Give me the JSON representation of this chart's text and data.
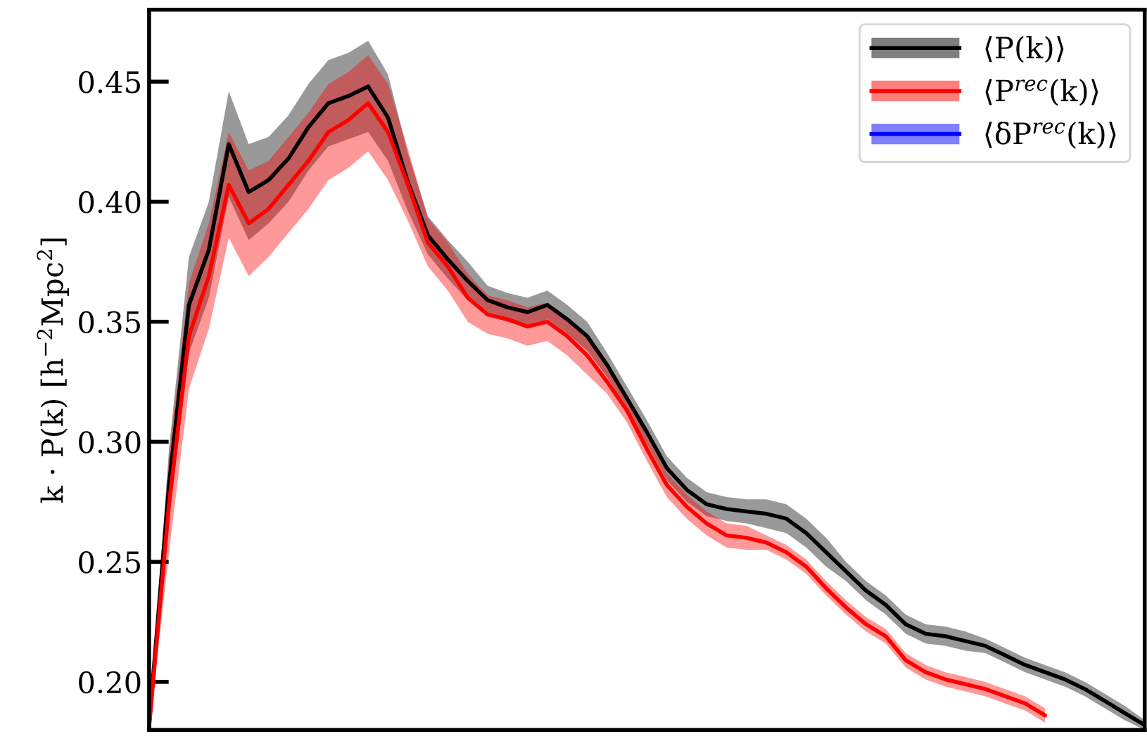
{
  "chart_data": {
    "type": "line",
    "ylabel": "k · P(k) [h$^{−2}$Mpc$^{2}$]",
    "categories": [
      null,
      null,
      null,
      null,
      null,
      null,
      null,
      null,
      null,
      null,
      null,
      null,
      null,
      null,
      null,
      null,
      null,
      null,
      null,
      null,
      null,
      null,
      null,
      null,
      null,
      null,
      null,
      null,
      null,
      null,
      null,
      null,
      null,
      null,
      null,
      null,
      null,
      null,
      null,
      null,
      null,
      null,
      null,
      null,
      null,
      null,
      null,
      null,
      null,
      null,
      null
    ],
    "ylim": [
      0.18,
      0.48
    ],
    "yticks": [
      {
        "value": 0.2,
        "label": "0.20"
      },
      0.25,
      {
        "value": 0.3,
        "label": "0.30"
      },
      0.35,
      {
        "value": 0.4,
        "label": "0.40"
      },
      0.45
    ],
    "grid": false,
    "legend": "top right",
    "marker": "none",
    "line_style": "solid",
    "series": [
      {
        "name": "⟨P(k)⟩",
        "color": "#000000",
        "values": [
          0.182,
          0.282,
          0.357,
          0.38,
          0.424,
          0.404,
          0.409,
          0.418,
          0.431,
          0.441,
          0.444,
          0.448,
          0.435,
          0.408,
          0.386,
          0.376,
          0.367,
          0.359,
          0.356,
          0.354,
          0.357,
          0.351,
          0.344,
          0.332,
          0.318,
          0.304,
          0.289,
          0.28,
          0.274,
          0.272,
          0.271,
          0.27,
          0.268,
          0.262,
          0.254,
          0.246,
          0.238,
          0.232,
          0.224,
          0.22,
          0.219,
          0.217,
          0.215,
          0.211,
          0.207,
          0.204,
          0.201,
          0.197,
          0.192,
          0.187,
          0.182
        ],
        "lower": [
          0.18,
          0.267,
          0.337,
          0.36,
          0.402,
          0.384,
          0.391,
          0.4,
          0.413,
          0.423,
          0.426,
          0.429,
          0.417,
          0.396,
          0.378,
          0.368,
          0.359,
          0.353,
          0.35,
          0.348,
          0.351,
          0.345,
          0.338,
          0.327,
          0.313,
          0.299,
          0.284,
          0.275,
          0.269,
          0.267,
          0.266,
          0.264,
          0.262,
          0.256,
          0.248,
          0.242,
          0.234,
          0.228,
          0.22,
          0.216,
          0.215,
          0.213,
          0.212,
          0.208,
          0.204,
          0.201,
          0.198,
          0.194,
          0.189,
          0.184,
          0.18
        ],
        "upper": [
          0.184,
          0.297,
          0.377,
          0.4,
          0.446,
          0.424,
          0.427,
          0.436,
          0.449,
          0.459,
          0.462,
          0.467,
          0.453,
          0.42,
          0.394,
          0.384,
          0.375,
          0.365,
          0.362,
          0.36,
          0.363,
          0.357,
          0.35,
          0.337,
          0.323,
          0.309,
          0.294,
          0.285,
          0.279,
          0.277,
          0.276,
          0.276,
          0.274,
          0.268,
          0.26,
          0.25,
          0.242,
          0.236,
          0.228,
          0.224,
          0.223,
          0.221,
          0.218,
          0.214,
          0.21,
          0.207,
          0.204,
          0.2,
          0.195,
          0.19,
          0.184
        ]
      },
      {
        "name": "⟨P$^{rec}$(k)⟩",
        "color": "#ff0000",
        "values": [
          0.181,
          0.274,
          0.344,
          0.369,
          0.407,
          0.391,
          0.397,
          0.407,
          0.417,
          0.429,
          0.434,
          0.441,
          0.429,
          0.407,
          0.383,
          0.373,
          0.36,
          0.353,
          0.351,
          0.348,
          0.35,
          0.344,
          0.336,
          0.325,
          0.313,
          0.297,
          0.282,
          0.273,
          0.266,
          0.261,
          0.26,
          0.258,
          0.254,
          0.248,
          0.239,
          0.231,
          0.224,
          0.219,
          0.209,
          0.204,
          0.201,
          0.199,
          0.197,
          0.194,
          0.191,
          0.186,
          null,
          null,
          null,
          null,
          null
        ],
        "lower": [
          0.18,
          0.254,
          0.322,
          0.347,
          0.385,
          0.369,
          0.377,
          0.387,
          0.397,
          0.409,
          0.414,
          0.421,
          0.409,
          0.392,
          0.373,
          0.363,
          0.35,
          0.345,
          0.343,
          0.34,
          0.342,
          0.336,
          0.328,
          0.32,
          0.308,
          0.292,
          0.277,
          0.268,
          0.261,
          0.256,
          0.255,
          0.255,
          0.251,
          0.245,
          0.236,
          0.228,
          0.221,
          0.216,
          0.206,
          0.201,
          0.198,
          0.196,
          0.194,
          0.191,
          0.188,
          0.183,
          null,
          null,
          null,
          null,
          null
        ],
        "upper": [
          0.182,
          0.294,
          0.366,
          0.391,
          0.429,
          0.413,
          0.417,
          0.427,
          0.437,
          0.449,
          0.454,
          0.461,
          0.449,
          0.422,
          0.393,
          0.383,
          0.37,
          0.361,
          0.359,
          0.356,
          0.358,
          0.352,
          0.344,
          0.33,
          0.318,
          0.302,
          0.287,
          0.278,
          0.271,
          0.266,
          0.265,
          0.261,
          0.257,
          0.251,
          0.242,
          0.234,
          0.227,
          0.222,
          0.212,
          0.207,
          0.204,
          0.202,
          0.2,
          0.197,
          0.194,
          0.189,
          null,
          null,
          null,
          null,
          null
        ]
      },
      {
        "name": "⟨δP$^{rec}$(k)⟩",
        "color": "#0000ff",
        "values": [
          null,
          null,
          null,
          null,
          null,
          null,
          null,
          null,
          null,
          null,
          null,
          null,
          null,
          null,
          null,
          null,
          null,
          null,
          null,
          null,
          null,
          null,
          null,
          null,
          null,
          null,
          null,
          null,
          null,
          null,
          null,
          null,
          null,
          null,
          null,
          null,
          null,
          null,
          null,
          null,
          null,
          null,
          null,
          null,
          null,
          null,
          null,
          null,
          null,
          null,
          null
        ]
      }
    ]
  }
}
